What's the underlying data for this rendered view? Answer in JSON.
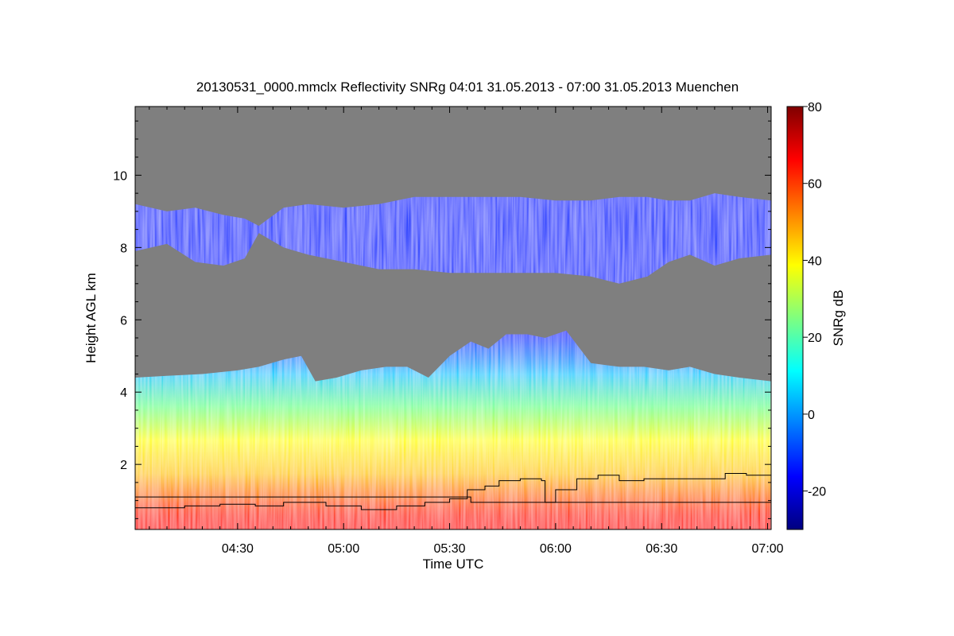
{
  "chart_data": {
    "type": "heatmap",
    "title": "20130531_0000.mmclx Reflectivity SNRg   04:01 31.05.2013 - 07:00 31.05.2013 Muenchen",
    "xlabel": "Time UTC",
    "ylabel": "Height AGL km",
    "x_ticks": [
      "04:30",
      "05:00",
      "05:30",
      "06:00",
      "06:30",
      "07:00"
    ],
    "x_tick_minutes": [
      270,
      300,
      330,
      360,
      390,
      420
    ],
    "x_range_minutes": [
      241,
      421
    ],
    "y_ticks": [
      "2",
      "4",
      "6",
      "8",
      "10"
    ],
    "y_tick_values": [
      2,
      4,
      6,
      8,
      10
    ],
    "ylim": [
      0.2,
      11.9
    ],
    "colorbar": {
      "label": "SNRg dB",
      "ticks": [
        "-20",
        "0",
        "20",
        "40",
        "60",
        "80"
      ],
      "tick_values": [
        -20,
        0,
        20,
        40,
        60,
        80
      ],
      "range": [
        -30,
        80
      ],
      "colors": [
        "#00007f",
        "#0000ff",
        "#007fff",
        "#00ffff",
        "#7fff7f",
        "#ffff00",
        "#ff7f00",
        "#ff0000",
        "#7f0000"
      ]
    },
    "no_signal_color": "#7f7f7f",
    "cloud_top_km": [
      {
        "t": 241,
        "h": 4.4
      },
      {
        "t": 250,
        "h": 4.45
      },
      {
        "t": 260,
        "h": 4.5
      },
      {
        "t": 270,
        "h": 4.6
      },
      {
        "t": 276,
        "h": 4.7
      },
      {
        "t": 283,
        "h": 4.9
      },
      {
        "t": 288,
        "h": 5.0
      },
      {
        "t": 292,
        "h": 4.3
      },
      {
        "t": 298,
        "h": 4.4
      },
      {
        "t": 305,
        "h": 4.6
      },
      {
        "t": 312,
        "h": 4.7
      },
      {
        "t": 318,
        "h": 4.7
      },
      {
        "t": 324,
        "h": 4.4
      },
      {
        "t": 330,
        "h": 5.0
      },
      {
        "t": 336,
        "h": 5.4
      },
      {
        "t": 341,
        "h": 5.2
      },
      {
        "t": 346,
        "h": 5.6
      },
      {
        "t": 352,
        "h": 5.6
      },
      {
        "t": 357,
        "h": 5.5
      },
      {
        "t": 363,
        "h": 5.7
      },
      {
        "t": 370,
        "h": 4.8
      },
      {
        "t": 378,
        "h": 4.7
      },
      {
        "t": 385,
        "h": 4.7
      },
      {
        "t": 392,
        "h": 4.6
      },
      {
        "t": 398,
        "h": 4.7
      },
      {
        "t": 405,
        "h": 4.5
      },
      {
        "t": 412,
        "h": 4.4
      },
      {
        "t": 421,
        "h": 4.3
      }
    ],
    "upper_layer_km": [
      {
        "t": 241,
        "base": 7.9,
        "top": 9.2
      },
      {
        "t": 250,
        "base": 8.1,
        "top": 9.0
      },
      {
        "t": 258,
        "base": 7.6,
        "top": 9.1
      },
      {
        "t": 266,
        "base": 7.5,
        "top": 8.9
      },
      {
        "t": 272,
        "base": 7.7,
        "top": 8.8
      },
      {
        "t": 276,
        "base": 8.4,
        "top": 8.6
      },
      {
        "t": 283,
        "base": 8.0,
        "top": 9.1
      },
      {
        "t": 290,
        "base": 7.8,
        "top": 9.2
      },
      {
        "t": 300,
        "base": 7.6,
        "top": 9.1
      },
      {
        "t": 310,
        "base": 7.4,
        "top": 9.2
      },
      {
        "t": 320,
        "base": 7.4,
        "top": 9.4
      },
      {
        "t": 330,
        "base": 7.3,
        "top": 9.4
      },
      {
        "t": 340,
        "base": 7.3,
        "top": 9.4
      },
      {
        "t": 350,
        "base": 7.3,
        "top": 9.4
      },
      {
        "t": 360,
        "base": 7.3,
        "top": 9.3
      },
      {
        "t": 370,
        "base": 7.2,
        "top": 9.3
      },
      {
        "t": 378,
        "base": 7.0,
        "top": 9.4
      },
      {
        "t": 386,
        "base": 7.2,
        "top": 9.4
      },
      {
        "t": 392,
        "base": 7.6,
        "top": 9.3
      },
      {
        "t": 398,
        "base": 7.8,
        "top": 9.3
      },
      {
        "t": 405,
        "base": 7.5,
        "top": 9.5
      },
      {
        "t": 412,
        "base": 7.7,
        "top": 9.4
      },
      {
        "t": 421,
        "base": 7.8,
        "top": 9.3
      }
    ],
    "boundary_line_km": [
      {
        "t": 241,
        "h": 0.8
      },
      {
        "t": 255,
        "h": 0.85
      },
      {
        "t": 265,
        "h": 0.9
      },
      {
        "t": 275,
        "h": 0.85
      },
      {
        "t": 283,
        "h": 0.95
      },
      {
        "t": 295,
        "h": 0.85
      },
      {
        "t": 305,
        "h": 0.75
      },
      {
        "t": 315,
        "h": 0.85
      },
      {
        "t": 323,
        "h": 0.95
      },
      {
        "t": 330,
        "h": 1.05
      },
      {
        "t": 335,
        "h": 1.3
      },
      {
        "t": 340,
        "h": 1.4
      },
      {
        "t": 344,
        "h": 1.55
      },
      {
        "t": 350,
        "h": 1.6
      },
      {
        "t": 356,
        "h": 1.55
      },
      {
        "t": 357,
        "h": 0.95
      },
      {
        "t": 360,
        "h": 1.3
      },
      {
        "t": 366,
        "h": 1.6
      },
      {
        "t": 372,
        "h": 1.7
      },
      {
        "t": 378,
        "h": 1.55
      },
      {
        "t": 385,
        "h": 1.6
      },
      {
        "t": 392,
        "h": 1.6
      },
      {
        "t": 402,
        "h": 1.6
      },
      {
        "t": 408,
        "h": 1.75
      },
      {
        "t": 414,
        "h": 1.7
      },
      {
        "t": 421,
        "h": 1.8
      }
    ],
    "reference_line_km": [
      {
        "t": 241,
        "h": 1.1
      },
      {
        "t": 336,
        "h": 1.1
      },
      {
        "t": 336,
        "h": 0.95
      },
      {
        "t": 421,
        "h": 0.95
      }
    ],
    "grid": false
  }
}
